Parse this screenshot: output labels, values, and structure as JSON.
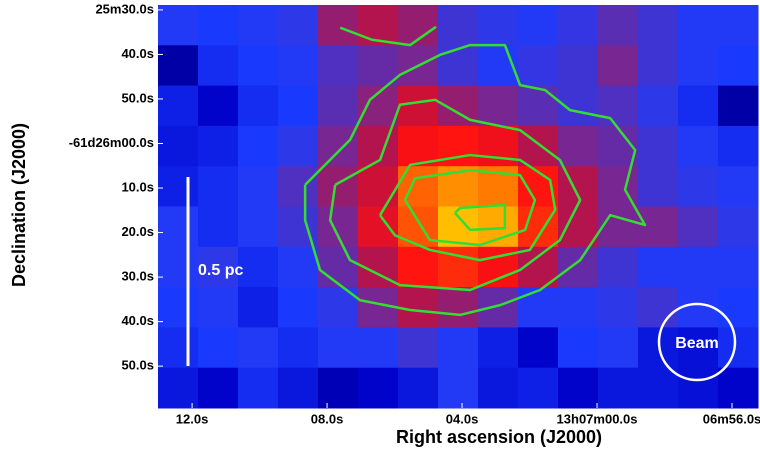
{
  "chart_data": {
    "type": "image",
    "xlabel": "Right ascension (J2000)",
    "ylabel": "Declination (J2000)",
    "xlim": [
      13.01,
      -4.77
    ],
    "ylim": [
      28.9,
      119.4
    ],
    "xticks": [
      {
        "value": 12,
        "label": "12.0s"
      },
      {
        "value": 8,
        "label": "08.0s"
      },
      {
        "value": 4,
        "label": "04.0s"
      },
      {
        "value": 0,
        "label": "13h07m00.0s"
      },
      {
        "value": -4,
        "label": "06m56.0s"
      }
    ],
    "yticks": [
      {
        "value": 30,
        "label": "25m30.0s"
      },
      {
        "value": 40,
        "label": "40.0s"
      },
      {
        "value": 50,
        "label": "50.0s"
      },
      {
        "value": 60,
        "label": "-61d26m00.0s"
      },
      {
        "value": 70,
        "label": "10.0s"
      },
      {
        "value": 80,
        "label": "20.0s"
      },
      {
        "value": 90,
        "label": "30.0s"
      },
      {
        "value": 100,
        "label": "40.0s"
      },
      {
        "value": 110,
        "label": "50.0s"
      }
    ],
    "clim": [
      0,
      1
    ],
    "colormap": [
      "#00005a",
      "#0000c8",
      "#1a3cff",
      "#6a2aa0",
      "#c01040",
      "#ff1010",
      "#ff8000",
      "#ffe000"
    ],
    "z": [
      [
        0.3,
        0.28,
        0.3,
        0.32,
        0.5,
        0.55,
        0.5,
        0.35,
        0.32,
        0.3,
        0.33,
        0.4,
        0.35,
        0.3,
        0.3
      ],
      [
        0.1,
        0.25,
        0.28,
        0.3,
        0.38,
        0.42,
        0.45,
        0.35,
        0.3,
        0.33,
        0.35,
        0.45,
        0.35,
        0.3,
        0.28
      ],
      [
        0.22,
        0.15,
        0.25,
        0.28,
        0.4,
        0.48,
        0.6,
        0.5,
        0.45,
        0.4,
        0.35,
        0.38,
        0.32,
        0.25,
        0.1
      ],
      [
        0.2,
        0.22,
        0.28,
        0.32,
        0.45,
        0.55,
        0.7,
        0.72,
        0.68,
        0.55,
        0.45,
        0.42,
        0.35,
        0.3,
        0.25
      ],
      [
        0.22,
        0.25,
        0.3,
        0.38,
        0.5,
        0.6,
        0.82,
        0.88,
        0.85,
        0.72,
        0.55,
        0.45,
        0.35,
        0.32,
        0.3
      ],
      [
        0.3,
        0.25,
        0.3,
        0.35,
        0.45,
        0.65,
        0.8,
        0.95,
        0.92,
        0.75,
        0.55,
        0.45,
        0.45,
        0.38,
        0.32
      ],
      [
        0.3,
        0.32,
        0.25,
        0.3,
        0.42,
        0.55,
        0.72,
        0.75,
        0.7,
        0.55,
        0.42,
        0.35,
        0.3,
        0.3,
        0.3
      ],
      [
        0.28,
        0.3,
        0.22,
        0.28,
        0.32,
        0.45,
        0.55,
        0.5,
        0.42,
        0.3,
        0.3,
        0.32,
        0.35,
        0.3,
        0.28
      ],
      [
        0.25,
        0.28,
        0.3,
        0.25,
        0.3,
        0.3,
        0.35,
        0.3,
        0.22,
        0.15,
        0.28,
        0.3,
        0.2,
        0.18,
        0.25
      ],
      [
        0.2,
        0.15,
        0.25,
        0.2,
        0.12,
        0.15,
        0.2,
        0.3,
        0.2,
        0.22,
        0.15,
        0.2,
        0.2,
        0.18,
        0.15
      ]
    ],
    "contour_color": "#33dd33",
    "contours": [
      {
        "x": [
          7.61,
          6.67,
          5.54,
          4.77
        ],
        "y": [
          34.0,
          36.7,
          37.9,
          33.8
        ]
      },
      {
        "x": [
          8.65,
          7.32,
          6.73,
          5.84,
          4.65,
          3.76,
          2.73,
          2.28,
          1.54,
          0.8,
          -0.39,
          -1.13,
          -0.83,
          -1.42,
          -0.39,
          0.5,
          1.69,
          2.87,
          4.06,
          5.54,
          7.02,
          8.21,
          8.65,
          8.65
        ],
        "y": [
          69.3,
          59.2,
          50.2,
          44.6,
          40.1,
          37.9,
          37.9,
          46.9,
          48.0,
          52.5,
          54.3,
          61.5,
          70.4,
          78.3,
          76.1,
          86.2,
          92.9,
          96.3,
          98.5,
          97.4,
          95.2,
          88.4,
          77.2,
          69.3
        ]
      },
      {
        "x": [
          7.76,
          6.43,
          5.84,
          4.8,
          3.76,
          2.28,
          1.1,
          0.5,
          1.1,
          2.28,
          3.76,
          5.84,
          7.32,
          7.91,
          7.76
        ],
        "y": [
          69.3,
          63.7,
          51.3,
          50.2,
          54.7,
          57.0,
          63.7,
          72.7,
          81.7,
          88.4,
          92.9,
          91.8,
          86.2,
          77.2,
          69.3
        ]
      },
      {
        "x": [
          6.43,
          5.54,
          3.76,
          2.28,
          1.39,
          1.24,
          1.99,
          3.47,
          4.95,
          5.99,
          6.43
        ],
        "y": [
          76.1,
          64.8,
          62.6,
          63.7,
          68.2,
          74.9,
          83.9,
          86.2,
          83.9,
          80.6,
          76.1
        ]
      },
      {
        "x": [
          5.69,
          5.39,
          3.76,
          2.28,
          1.84,
          2.13,
          3.47,
          4.95,
          5.69
        ],
        "y": [
          72.7,
          67.8,
          66.0,
          67.1,
          72.7,
          79.4,
          82.8,
          81.7,
          72.7
        ]
      },
      {
        "x": [
          4.21,
          4.06,
          2.73,
          2.73,
          3.76,
          4.21
        ],
        "y": [
          75.6,
          74.5,
          73.8,
          79.0,
          79.4,
          75.6
        ]
      }
    ],
    "annotations": [
      "0.5 pc",
      "Beam"
    ]
  }
}
